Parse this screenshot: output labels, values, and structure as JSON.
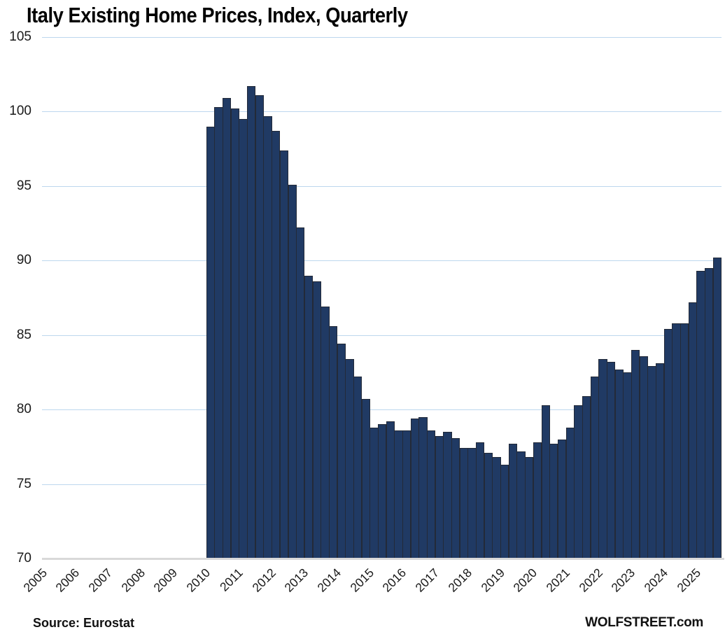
{
  "chart_data": {
    "type": "bar",
    "title": "Italy Existing Home Prices, Index, Quarterly",
    "ylim": [
      70,
      105
    ],
    "y_ticks": [
      105,
      100,
      95,
      90,
      85,
      80,
      75,
      70
    ],
    "grid": true,
    "legend": false,
    "x_tick_labels": [
      "2005",
      "2006",
      "2007",
      "2008",
      "2009",
      "2010",
      "2011",
      "2012",
      "2013",
      "2014",
      "2015",
      "2016",
      "2017",
      "2018",
      "2019",
      "2020",
      "2021",
      "2022",
      "2023",
      "2024",
      "2025"
    ],
    "series": {
      "start_year": 2010,
      "start_quarter": 1,
      "frequency": "quarterly",
      "first_data_year_tick": "2010",
      "values": [
        99.0,
        100.3,
        100.9,
        100.2,
        99.5,
        101.7,
        101.1,
        99.7,
        98.7,
        97.4,
        95.1,
        92.2,
        89.0,
        88.6,
        86.9,
        85.6,
        84.4,
        83.4,
        82.2,
        80.7,
        78.8,
        79.0,
        79.2,
        78.6,
        78.6,
        79.4,
        79.5,
        78.6,
        78.2,
        78.5,
        78.1,
        77.4,
        77.4,
        77.8,
        77.1,
        76.8,
        76.3,
        77.7,
        77.2,
        76.8,
        77.8,
        80.3,
        77.7,
        78.0,
        78.8,
        80.3,
        80.9,
        82.2,
        83.4,
        83.2,
        82.7,
        82.5,
        84.0,
        83.6,
        82.9,
        83.1,
        85.4,
        85.8,
        85.8,
        87.2,
        89.3,
        89.5,
        90.2
      ]
    },
    "colors": {
      "bar_fill": "#203A64",
      "bar_border": "#232A38",
      "gridline": "#BDD7EE",
      "axis_line": "#D9D9D9",
      "title_text": "#000000",
      "tick_text": "#1A1A1A"
    }
  },
  "footer": {
    "source": "Source: Eurostat",
    "brand": "WOLFSTREET.com"
  }
}
